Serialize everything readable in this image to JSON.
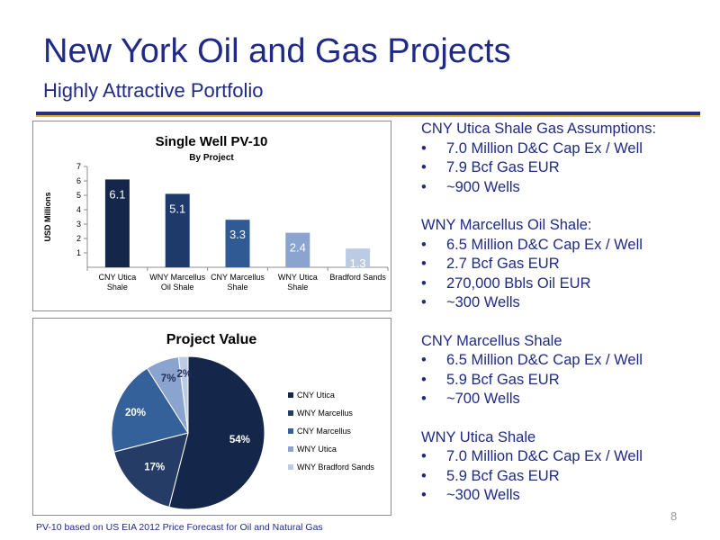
{
  "slide": {
    "title": "New York Oil and Gas Projects",
    "subtitle": "Highly Attractive Portfolio",
    "footnote": "PV-10 based on US EIA 2012 Price Forecast for Oil and Natural Gas",
    "page_number": "8"
  },
  "assumptions": [
    {
      "heading": "CNY Utica Shale Gas Assumptions:",
      "items": [
        "7.0 Million D&C Cap Ex / Well",
        "7.9 Bcf Gas EUR",
        "~900 Wells"
      ]
    },
    {
      "heading": "WNY Marcellus Oil Shale:",
      "items": [
        "6.5 Million D&C Cap Ex / Well",
        "2.7 Bcf Gas EUR",
        "270,000 Bbls Oil EUR",
        "~300 Wells"
      ]
    },
    {
      "heading": "CNY Marcellus Shale",
      "items": [
        "6.5 Million D&C Cap Ex / Well",
        "5.9 Bcf Gas EUR",
        "~700 Wells"
      ]
    },
    {
      "heading": "WNY Utica Shale",
      "items": [
        "7.0 Million D&C Cap Ex / Well",
        "5.9 Bcf Gas EUR",
        "~300 Wells"
      ]
    }
  ],
  "chart_data": [
    {
      "type": "bar",
      "title": "Single Well PV-10",
      "subtitle": "By Project",
      "ylabel": "USD Millions",
      "ylim": [
        0,
        7
      ],
      "yticks": [
        "1",
        "2",
        "3",
        "4",
        "5",
        "6",
        "7"
      ],
      "categories": [
        [
          "CNY Utica",
          "Shale"
        ],
        [
          "WNY Marcellus",
          "Oil Shale"
        ],
        [
          "CNY Marcellus",
          "Shale"
        ],
        [
          "WNY Utica",
          "Shale"
        ],
        [
          "Bradford Sands"
        ]
      ],
      "values": [
        6.1,
        5.1,
        3.3,
        2.4,
        1.3
      ],
      "labels": [
        "6.1",
        "5.1",
        "3.3",
        "2.4",
        "1.3"
      ],
      "colors": [
        "#14264a",
        "#1d3a6b",
        "#2f5a93",
        "#8aa3cf",
        "#bccbe4"
      ]
    },
    {
      "type": "pie",
      "title": "Project Value",
      "categories": [
        "CNY Utica",
        "WNY Marcellus",
        "CNY Marcellus",
        "WNY Utica",
        "WNY Bradford Sands"
      ],
      "values": [
        54,
        17,
        20,
        7,
        2
      ],
      "labels": [
        "54%",
        "17%",
        "20%",
        "7%",
        "2%"
      ],
      "colors": [
        "#14264a",
        "#253d66",
        "#35619a",
        "#8aa3cf",
        "#bccbe4"
      ]
    }
  ]
}
